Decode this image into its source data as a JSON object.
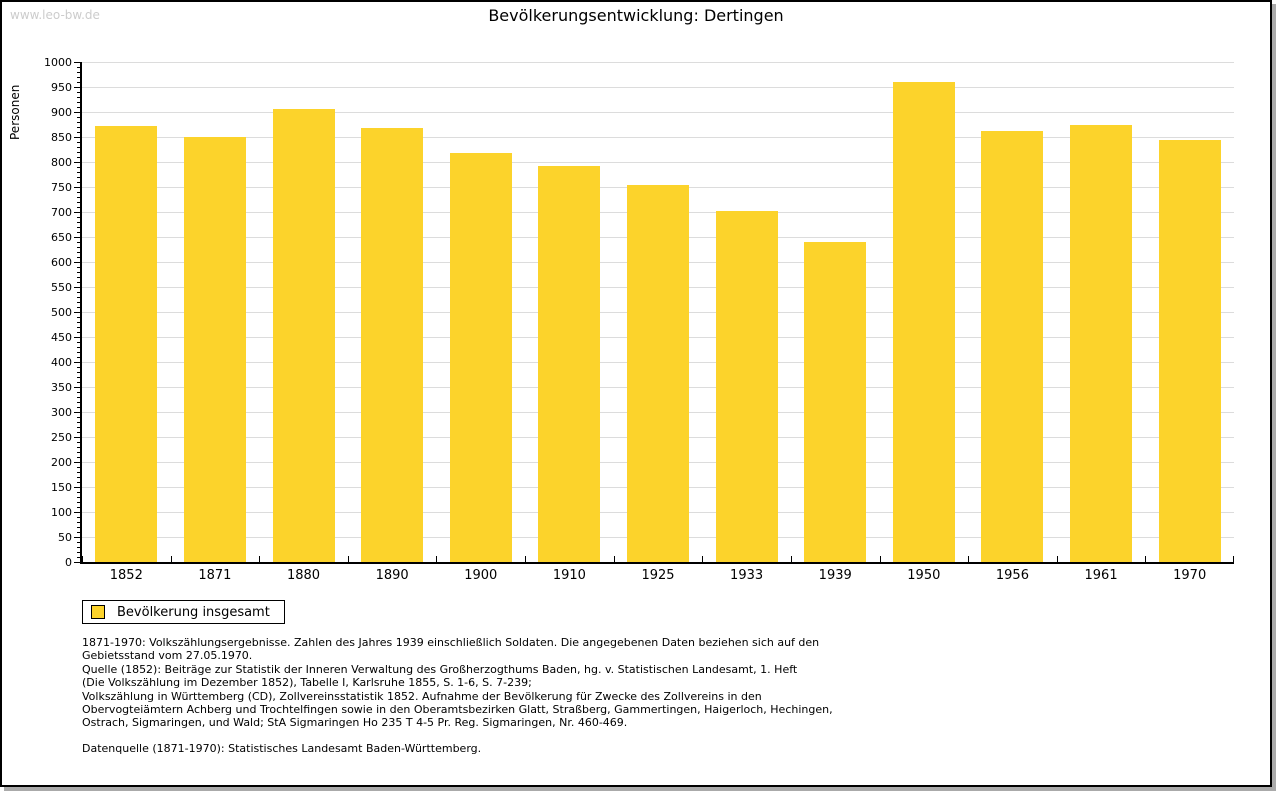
{
  "watermark": "www.leo-bw.de",
  "chart_data": {
    "type": "bar",
    "title": "Bevölkerungsentwicklung: Dertingen",
    "xlabel": "",
    "ylabel": "Personen",
    "categories": [
      "1852",
      "1871",
      "1880",
      "1890",
      "1900",
      "1910",
      "1925",
      "1933",
      "1939",
      "1950",
      "1956",
      "1961",
      "1970"
    ],
    "values": [
      872,
      850,
      906,
      868,
      818,
      793,
      755,
      703,
      640,
      961,
      863,
      874,
      844
    ],
    "series_name": "Bevölkerung insgesamt",
    "ylim": [
      0,
      1000
    ],
    "ytick_step": 50,
    "ytick_minor_step": 10,
    "yticks": [
      0,
      50,
      100,
      150,
      200,
      250,
      300,
      350,
      400,
      450,
      500,
      550,
      600,
      650,
      700,
      750,
      800,
      850,
      900,
      950,
      1000
    ],
    "grid": true,
    "bar_color": "#FCD32B",
    "gridline_color": "#dcdcdc",
    "legend_position": "bottom-left"
  },
  "legend": {
    "label": "Bevölkerung insgesamt",
    "swatch_color": "#FCD32B"
  },
  "footnotes": {
    "lines": [
      "1871-1970: Volkszählungsergebnisse. Zahlen des Jahres 1939 einschließlich Soldaten. Die angegebenen Daten beziehen sich auf den",
      "Gebietsstand vom 27.05.1970.",
      "Quelle (1852): Beiträge zur Statistik der Inneren Verwaltung des Großherzogthums Baden, hg. v. Statistischen Landesamt, 1. Heft",
      "(Die Volkszählung im Dezember 1852), Tabelle I, Karlsruhe 1855, S. 1-6, S. 7-239;",
      "Volkszählung in Württemberg (CD), Zollvereinsstatistik 1852. Aufnahme der Bevölkerung für Zwecke des Zollvereins in den",
      "Obervogteiämtern Achberg und Trochtelfingen sowie in den Oberamtsbezirken Glatt, Straßberg, Gammertingen, Haigerloch, Hechingen,",
      "Ostrach, Sigmaringen, und Wald; StA Sigmaringen Ho 235 T 4-5 Pr. Reg. Sigmaringen, Nr. 460-469."
    ],
    "datasource": "Datenquelle (1871-1970): Statistisches Landesamt Baden-Württemberg."
  }
}
